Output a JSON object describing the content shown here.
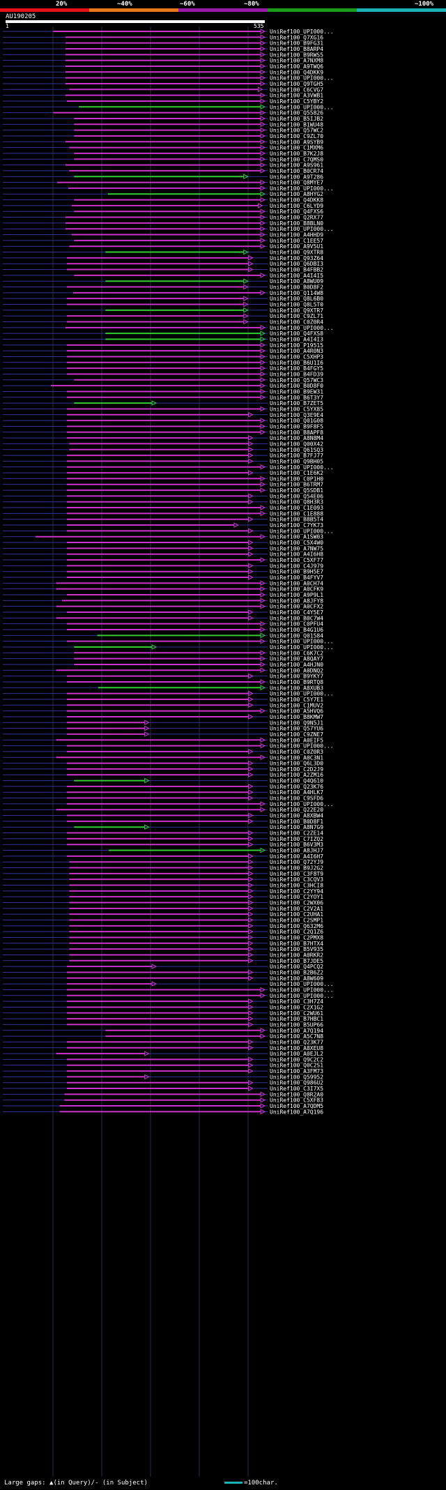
{
  "scale": {
    "ticks": [
      "20%",
      "~40%",
      "~60%",
      "~80%",
      "~100%"
    ],
    "colors": [
      "#e8101a",
      "#e6781a",
      "#9a1aa8",
      "#1a9a1a",
      "#1ab2b2"
    ]
  },
  "query": {
    "id": "AU190205",
    "start": "1",
    "end": "535"
  },
  "colors": {
    "hit": "#cc33cc",
    "best": "#33cc33",
    "gap": "#333399",
    "text": "#ffffff"
  },
  "legend": {
    "left": "Large gaps: ▲(in Query)/- (in Subject)",
    "right": "=100char.",
    "swatch_color": "#1ab2b2"
  },
  "chart_data": {
    "type": "alignment",
    "query_length": 535,
    "hits": [
      {
        "label": "UniRef100_UPI000...",
        "s": 97,
        "e": 535
      },
      {
        "label": "UniRef100_Q7XG16",
        "s": 122,
        "e": 535
      },
      {
        "label": "UniRef100_B9FG31",
        "s": 122,
        "e": 535
      },
      {
        "label": "UniRef100_B8ARP4",
        "s": 122,
        "e": 535
      },
      {
        "label": "UniRef100_B9RWS5",
        "s": 122,
        "e": 535
      },
      {
        "label": "UniRef100_A7NXM8",
        "s": 122,
        "e": 535
      },
      {
        "label": "UniRef100_A9TWQ6",
        "s": 122,
        "e": 535
      },
      {
        "label": "UniRef100_Q4DKK9",
        "s": 122,
        "e": 535
      },
      {
        "label": "UniRef100_UPI000...",
        "s": 122,
        "e": 535
      },
      {
        "label": "UniRef100_Q9TGH5",
        "s": 122,
        "e": 535
      },
      {
        "label": "UniRef100_C6CVG7",
        "s": 130,
        "e": 530
      },
      {
        "label": "UniRef100_A3VWB1",
        "s": 122,
        "e": 535
      },
      {
        "label": "UniRef100_C5YBY2",
        "s": 125,
        "e": 535
      },
      {
        "label": "UniRef100_UPI000...",
        "s": 150,
        "e": 535,
        "best": true
      },
      {
        "label": "UniRef100_Q55826",
        "s": 97,
        "e": 535
      },
      {
        "label": "UniRef100_B5IJB2",
        "s": 140,
        "e": 535
      },
      {
        "label": "UniRef100_B1WU48",
        "s": 140,
        "e": 535
      },
      {
        "label": "UniRef100_Q57WC2",
        "s": 140,
        "e": 535
      },
      {
        "label": "UniRef100_C9ZL70",
        "s": 140,
        "e": 535
      },
      {
        "label": "UniRef100_A9SYB9",
        "s": 122,
        "e": 535
      },
      {
        "label": "UniRef100_C1MXM6",
        "s": 130,
        "e": 535
      },
      {
        "label": "UniRef100_B7K2J8",
        "s": 140,
        "e": 535
      },
      {
        "label": "UniRef100_C7QMS0",
        "s": 140,
        "e": 535
      },
      {
        "label": "UniRef100_A9S961",
        "s": 122,
        "e": 535
      },
      {
        "label": "UniRef100_B0CR74",
        "s": 130,
        "e": 535
      },
      {
        "label": "UniRef100_A9T286",
        "s": 140,
        "e": 500,
        "best": true
      },
      {
        "label": "UniRef100_Q8MYE7",
        "s": 105,
        "e": 535
      },
      {
        "label": "UniRef100_UPI000...",
        "s": 128,
        "e": 535
      },
      {
        "label": "UniRef100_A8HYG2",
        "s": 210,
        "e": 535,
        "best": true
      },
      {
        "label": "UniRef100_Q4DKK8",
        "s": 140,
        "e": 535
      },
      {
        "label": "UniRef100_C6LYD9",
        "s": 135,
        "e": 530
      },
      {
        "label": "UniRef100_Q4FXS6",
        "s": 140,
        "e": 535
      },
      {
        "label": "UniRef100_Q2RX77",
        "s": 122,
        "e": 535
      },
      {
        "label": "UniRef100_B8BLN0",
        "s": 122,
        "e": 535
      },
      {
        "label": "UniRef100_UPI000...",
        "s": 122,
        "e": 535
      },
      {
        "label": "UniRef100_A4HHD9",
        "s": 135,
        "e": 535
      },
      {
        "label": "UniRef100_C1EE57",
        "s": 140,
        "e": 535
      },
      {
        "label": "UniRef100_A9V5U1",
        "s": 130,
        "e": 535
      },
      {
        "label": "UniRef100_Q9XTR8",
        "s": 205,
        "e": 500,
        "best": true
      },
      {
        "label": "UniRef100_Q93Z64",
        "s": 125,
        "e": 510
      },
      {
        "label": "UniRef100_Q6DBI3",
        "s": 125,
        "e": 510
      },
      {
        "label": "UniRef100_B4FBB2",
        "s": 125,
        "e": 510
      },
      {
        "label": "UniRef100_A4I4I5",
        "s": 140,
        "e": 535
      },
      {
        "label": "UniRef100_A8WU09",
        "s": 205,
        "e": 500,
        "best": true
      },
      {
        "label": "UniRef100_B0D8F2",
        "s": 125,
        "e": 500
      },
      {
        "label": "UniRef100_Q114W8",
        "s": 138,
        "e": 535
      },
      {
        "label": "UniRef100_Q8L6B0",
        "s": 125,
        "e": 500
      },
      {
        "label": "UniRef100_Q8L5T0",
        "s": 125,
        "e": 500
      },
      {
        "label": "UniRef100_Q9XTR7",
        "s": 205,
        "e": 500,
        "best": true
      },
      {
        "label": "UniRef100_C9ZL71",
        "s": 125,
        "e": 500
      },
      {
        "label": "UniRef100_C0Z0R4",
        "s": 125,
        "e": 500
      },
      {
        "label": "UniRef100_UPI000...",
        "s": 122,
        "e": 535
      },
      {
        "label": "UniRef100_Q4FXS8",
        "s": 205,
        "e": 535,
        "best": true
      },
      {
        "label": "UniRef100_A4I4I3",
        "s": 205,
        "e": 535,
        "best": true
      },
      {
        "label": "UniRef100_P19515",
        "s": 125,
        "e": 545
      },
      {
        "label": "UniRef100_A4R0N3",
        "s": 125,
        "e": 535
      },
      {
        "label": "UniRef100_C5XHP3",
        "s": 125,
        "e": 535
      },
      {
        "label": "UniRef100_B6U1I6",
        "s": 125,
        "e": 535
      },
      {
        "label": "UniRef100_B4FGY5",
        "s": 125,
        "e": 535
      },
      {
        "label": "UniRef100_B4FD39",
        "s": 125,
        "e": 535
      },
      {
        "label": "UniRef100_Q57WC3",
        "s": 140,
        "e": 535
      },
      {
        "label": "UniRef100_B0D8F0",
        "s": 92,
        "e": 535
      },
      {
        "label": "UniRef100_B9EW31",
        "s": 125,
        "e": 535
      },
      {
        "label": "UniRef100_B6T3Y7",
        "s": 125,
        "e": 535
      },
      {
        "label": "UniRef100_B7ZET5",
        "s": 140,
        "e": 310,
        "best": true
      },
      {
        "label": "UniRef100_C5YX85",
        "s": 125,
        "e": 535
      },
      {
        "label": "UniRef100_Q3E9E4",
        "s": 125,
        "e": 510
      },
      {
        "label": "UniRef100_Q01G08",
        "s": 125,
        "e": 535
      },
      {
        "label": "UniRef100_B9F8F5",
        "s": 125,
        "e": 535
      },
      {
        "label": "UniRef100_B8APF8",
        "s": 125,
        "e": 535
      },
      {
        "label": "UniRef100_A8N8M4",
        "s": 125,
        "e": 510
      },
      {
        "label": "UniRef100_Q00X42",
        "s": 130,
        "e": 510
      },
      {
        "label": "UniRef100_Q61SQ3",
        "s": 130,
        "e": 510
      },
      {
        "label": "UniRef100_B7FJ77",
        "s": 125,
        "e": 510
      },
      {
        "label": "UniRef100_Q9BH05",
        "s": 125,
        "e": 510
      },
      {
        "label": "UniRef100_UPI000...",
        "s": 125,
        "e": 535
      },
      {
        "label": "UniRef100_C1E6K2",
        "s": 125,
        "e": 510
      },
      {
        "label": "UniRef100_C0P1H0",
        "s": 125,
        "e": 535
      },
      {
        "label": "UniRef100_B6TRM7",
        "s": 125,
        "e": 535
      },
      {
        "label": "UniRef100_Q5SDB1",
        "s": 125,
        "e": 535
      },
      {
        "label": "UniRef100_Q54E06",
        "s": 125,
        "e": 510
      },
      {
        "label": "UniRef100_Q8H3R3",
        "s": 125,
        "e": 510
      },
      {
        "label": "UniRef100_C1E093",
        "s": 125,
        "e": 535
      },
      {
        "label": "UniRef100_C1E888",
        "s": 125,
        "e": 535
      },
      {
        "label": "UniRef100_B8B5T4",
        "s": 125,
        "e": 510
      },
      {
        "label": "UniRef100_C7YK73",
        "s": 125,
        "e": 480
      },
      {
        "label": "UniRef100_UPI000...",
        "s": 125,
        "e": 510
      },
      {
        "label": "UniRef100_A1SW03",
        "s": 60,
        "e": 535
      },
      {
        "label": "UniRef100_C5X4W0",
        "s": 125,
        "e": 510
      },
      {
        "label": "UniRef100_A7NW75",
        "s": 125,
        "e": 510
      },
      {
        "label": "UniRef100_A4I6H8",
        "s": 125,
        "e": 510
      },
      {
        "label": "UniRef100_C5XF77",
        "s": 125,
        "e": 535
      },
      {
        "label": "UniRef100_C4J979",
        "s": 125,
        "e": 510
      },
      {
        "label": "UniRef100_B9H5E7",
        "s": 125,
        "e": 510
      },
      {
        "label": "UniRef100_B4FYV7",
        "s": 125,
        "e": 510
      },
      {
        "label": "UniRef100_A0CH74",
        "s": 103,
        "e": 535
      },
      {
        "label": "UniRef100_A0CFK9",
        "s": 103,
        "e": 535
      },
      {
        "label": "UniRef100_A9P9L1",
        "s": 125,
        "e": 535
      },
      {
        "label": "UniRef100_A8JFY8",
        "s": 115,
        "e": 535
      },
      {
        "label": "UniRef100_A0CFX2",
        "s": 103,
        "e": 535
      },
      {
        "label": "UniRef100_C4Y5E7",
        "s": 125,
        "e": 510
      },
      {
        "label": "UniRef100_B0C7W4",
        "s": 103,
        "e": 510
      },
      {
        "label": "UniRef100_C0PFU4",
        "s": 125,
        "e": 535
      },
      {
        "label": "UniRef100_B4G1U6",
        "s": 125,
        "e": 535
      },
      {
        "label": "UniRef100_Q01584",
        "s": 188,
        "e": 535,
        "best": true
      },
      {
        "label": "UniRef100_UPI000...",
        "s": 125,
        "e": 540
      },
      {
        "label": "UniRef100_UPI000...",
        "s": 140,
        "e": 310,
        "best": true
      },
      {
        "label": "UniRef100_C6K7C2",
        "s": 140,
        "e": 535
      },
      {
        "label": "UniRef100_A8QAY7",
        "s": 140,
        "e": 535
      },
      {
        "label": "UniRef100_A4HJN0",
        "s": 140,
        "e": 535
      },
      {
        "label": "UniRef100_A0DNQ2",
        "s": 103,
        "e": 535
      },
      {
        "label": "UniRef100_B9YKY7",
        "s": 125,
        "e": 510
      },
      {
        "label": "UniRef100_B9RTQ8",
        "s": 125,
        "e": 535
      },
      {
        "label": "UniRef100_A8XUB3",
        "s": 190,
        "e": 535,
        "best": true
      },
      {
        "label": "UniRef100_UPI000...",
        "s": 125,
        "e": 510
      },
      {
        "label": "UniRef100_C5Y7E1",
        "s": 125,
        "e": 510
      },
      {
        "label": "UniRef100_C1MUV2",
        "s": 125,
        "e": 510
      },
      {
        "label": "UniRef100_A5HVQ6",
        "s": 125,
        "e": 535
      },
      {
        "label": "UniRef100_B8KMW7",
        "s": 125,
        "e": 510
      },
      {
        "label": "UniRef100_Q9N5J1",
        "s": 125,
        "e": 295
      },
      {
        "label": "UniRef100_Q57YU6",
        "s": 125,
        "e": 295
      },
      {
        "label": "UniRef100_C9ZNE7",
        "s": 125,
        "e": 295
      },
      {
        "label": "UniRef100_A0EIF5",
        "s": 103,
        "e": 535
      },
      {
        "label": "UniRef100_UPI000...",
        "s": 125,
        "e": 535
      },
      {
        "label": "UniRef100_C0Z0R3",
        "s": 125,
        "e": 510
      },
      {
        "label": "UniRef100_A0C3N1",
        "s": 103,
        "e": 535
      },
      {
        "label": "UniRef100_Q6L3D0",
        "s": 125,
        "e": 510
      },
      {
        "label": "UniRef100_C2D2J9",
        "s": 125,
        "e": 510
      },
      {
        "label": "UniRef100_A2ZM16",
        "s": 125,
        "e": 510
      },
      {
        "label": "UniRef100_Q4Q610",
        "s": 140,
        "e": 295,
        "best": true
      },
      {
        "label": "UniRef100_Q23K76",
        "s": 125,
        "e": 510
      },
      {
        "label": "UniRef100_A4HLK7",
        "s": 125,
        "e": 510
      },
      {
        "label": "UniRef100_C9SFD6",
        "s": 125,
        "e": 510
      },
      {
        "label": "UniRef100_UPI000...",
        "s": 125,
        "e": 535
      },
      {
        "label": "UniRef100_Q22E20",
        "s": 103,
        "e": 535
      },
      {
        "label": "UniRef100_A8XBW4",
        "s": 125,
        "e": 510
      },
      {
        "label": "UniRef100_B0D8F1",
        "s": 125,
        "e": 510
      },
      {
        "label": "UniRef100_A8N7G9",
        "s": 140,
        "e": 295,
        "best": true
      },
      {
        "label": "UniRef100_C2ZE14",
        "s": 125,
        "e": 510
      },
      {
        "label": "UniRef100_C7IZQ2",
        "s": 125,
        "e": 510
      },
      {
        "label": "UniRef100_B6V3M3",
        "s": 125,
        "e": 510
      },
      {
        "label": "UniRef100_A8JHJ7",
        "s": 212,
        "e": 535,
        "best": true
      },
      {
        "label": "UniRef100_A4I6H7",
        "s": 125,
        "e": 510
      },
      {
        "label": "UniRef100_Q72YJ9",
        "s": 130,
        "e": 510
      },
      {
        "label": "UniRef100_B9J2G2",
        "s": 130,
        "e": 510
      },
      {
        "label": "UniRef100_C3F8T9",
        "s": 130,
        "e": 510
      },
      {
        "label": "UniRef100_C3CQV3",
        "s": 130,
        "e": 510
      },
      {
        "label": "UniRef100_C3HCI8",
        "s": 130,
        "e": 510
      },
      {
        "label": "UniRef100_C2YY94",
        "s": 130,
        "e": 510
      },
      {
        "label": "UniRef100_C2YOY1",
        "s": 130,
        "e": 510
      },
      {
        "label": "UniRef100_C2WX06",
        "s": 130,
        "e": 510
      },
      {
        "label": "UniRef100_C2V2A1",
        "s": 130,
        "e": 510
      },
      {
        "label": "UniRef100_C2UHA1",
        "s": 130,
        "e": 510
      },
      {
        "label": "UniRef100_C2SMP1",
        "s": 130,
        "e": 510
      },
      {
        "label": "UniRef100_Q632M6",
        "s": 130,
        "e": 510
      },
      {
        "label": "UniRef100_C2Q1Z6",
        "s": 130,
        "e": 510
      },
      {
        "label": "UniRef100_C2PMX8",
        "s": 130,
        "e": 510
      },
      {
        "label": "UniRef100_B7HTX4",
        "s": 130,
        "e": 510
      },
      {
        "label": "UniRef100_B5V935",
        "s": 130,
        "e": 510
      },
      {
        "label": "UniRef100_A0RKR2",
        "s": 130,
        "e": 510
      },
      {
        "label": "UniRef100_B7JDE5",
        "s": 130,
        "e": 510
      },
      {
        "label": "UniRef100_Q4PCQ2",
        "s": 125,
        "e": 310
      },
      {
        "label": "UniRef100_B2B6Z2",
        "s": 125,
        "e": 510
      },
      {
        "label": "UniRef100_A8W609",
        "s": 125,
        "e": 510
      },
      {
        "label": "UniRef100_UPI000...",
        "s": 125,
        "e": 310
      },
      {
        "label": "UniRef100_UPI000...",
        "s": 125,
        "e": 535
      },
      {
        "label": "UniRef100_UPI000...",
        "s": 125,
        "e": 535
      },
      {
        "label": "UniRef100_C3H7Z4",
        "s": 125,
        "e": 510
      },
      {
        "label": "UniRef100_C2X1G2",
        "s": 125,
        "e": 510
      },
      {
        "label": "UniRef100_C2WU61",
        "s": 125,
        "e": 510
      },
      {
        "label": "UniRef100_B7HBC1",
        "s": 125,
        "e": 510
      },
      {
        "label": "UniRef100_B5UP66",
        "s": 125,
        "e": 510
      },
      {
        "label": "UniRef100_A7Q194",
        "s": 205,
        "e": 535
      },
      {
        "label": "UniRef100_A5C7N8",
        "s": 205,
        "e": 535
      },
      {
        "label": "UniRef100_Q23K77",
        "s": 125,
        "e": 510
      },
      {
        "label": "UniRef100_A8XEU8",
        "s": 125,
        "e": 510
      },
      {
        "label": "UniRef100_A0EJL2",
        "s": 103,
        "e": 295
      },
      {
        "label": "UniRef100_Q9C2C2",
        "s": 125,
        "e": 510
      },
      {
        "label": "UniRef100_Q0C2S1",
        "s": 125,
        "e": 510
      },
      {
        "label": "UniRef100_A3FM73",
        "s": 125,
        "e": 510
      },
      {
        "label": "UniRef100_Q59952",
        "s": 125,
        "e": 295
      },
      {
        "label": "UniRef100_Q986U2",
        "s": 125,
        "e": 510
      },
      {
        "label": "UniRef100_C3I7X5",
        "s": 125,
        "e": 510
      },
      {
        "label": "UniRef100_Q8R2A0",
        "s": 120,
        "e": 535
      },
      {
        "label": "UniRef100_C5XF83",
        "s": 120,
        "e": 535
      },
      {
        "label": "UniRef100_A7QDM5",
        "s": 110,
        "e": 535
      },
      {
        "label": "UniRef100_A7Q196",
        "s": 110,
        "e": 535
      }
    ]
  }
}
